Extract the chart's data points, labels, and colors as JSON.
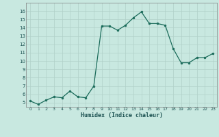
{
  "x": [
    0,
    1,
    2,
    3,
    4,
    5,
    6,
    7,
    8,
    9,
    10,
    11,
    12,
    13,
    14,
    15,
    16,
    17,
    18,
    19,
    20,
    21,
    22,
    23
  ],
  "y": [
    5.2,
    4.8,
    5.3,
    5.7,
    5.6,
    6.4,
    5.7,
    5.6,
    7.0,
    14.2,
    14.2,
    13.7,
    14.3,
    15.2,
    15.9,
    14.5,
    14.5,
    14.3,
    11.5,
    9.8,
    9.8,
    10.4,
    10.4,
    10.9
  ],
  "xlabel": "Humidex (Indice chaleur)",
  "ylim": [
    4.5,
    17
  ],
  "xlim": [
    -0.5,
    23.5
  ],
  "yticks": [
    5,
    6,
    7,
    8,
    9,
    10,
    11,
    12,
    13,
    14,
    15,
    16
  ],
  "xticks": [
    0,
    1,
    2,
    3,
    4,
    5,
    6,
    7,
    8,
    9,
    10,
    11,
    12,
    13,
    14,
    15,
    16,
    17,
    18,
    19,
    20,
    21,
    22,
    23
  ],
  "line_color": "#1a6b5a",
  "marker_color": "#1a6b5a",
  "bg_color": "#c8e8e0",
  "grid_color": "#b0d0c8"
}
